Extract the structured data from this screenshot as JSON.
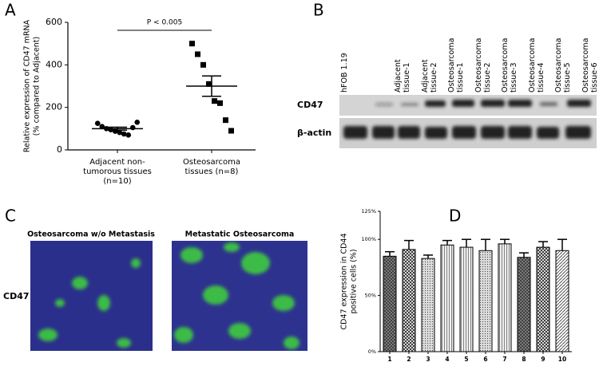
{
  "panel_letters": [
    "A",
    "B",
    "C",
    "D"
  ],
  "chart_data": [
    {
      "type": "dotplot",
      "y_label": [
        "Relative expression of CD47 mRNA",
        "(% compared to Adjacent)"
      ],
      "categories": [
        "Adjacent non-tumorous tissues (n=10)",
        "Osteosarcoma tissues (n=8)"
      ],
      "groups": [
        {
          "values": [
            125,
            110,
            100,
            95,
            88,
            82,
            75,
            70,
            105,
            130
          ],
          "mean": 100,
          "sem": 7,
          "marker": "circle"
        },
        {
          "values": [
            500,
            450,
            400,
            310,
            230,
            220,
            140,
            90
          ],
          "mean": 300,
          "sem": 48,
          "marker": "square"
        }
      ],
      "annotation": "P < 0.005",
      "ylim": [
        0,
        600
      ],
      "yticks": [
        0,
        200,
        400,
        600
      ],
      "color": "#000000"
    },
    {
      "type": "bar",
      "y_label": [
        "CD47 expression in CD44",
        "positive cells (%)"
      ],
      "categories": [
        "1",
        "2",
        "3",
        "4",
        "5",
        "6",
        "7",
        "8",
        "9",
        "10"
      ],
      "values": [
        85,
        91,
        83,
        95,
        93,
        90,
        96,
        84,
        93,
        90
      ],
      "errors": [
        4,
        8,
        3,
        4,
        7,
        10,
        4,
        4,
        5,
        10
      ],
      "ylim": [
        0,
        125
      ],
      "yticks": [
        {
          "value": 0,
          "label": "0%"
        },
        {
          "value": 50,
          "label": "50%"
        },
        {
          "value": 100,
          "label": "100%"
        },
        {
          "value": 125,
          "label": "125%"
        }
      ],
      "color": "#000000"
    }
  ],
  "blot": {
    "lanes": [
      "hFOB 1.19",
      "Adjacent tissue-1",
      "Adjacent tissue-2",
      "Osteosarcoma tissue-1",
      "Osteosarcoma tissue-2",
      "Osteosarcoma tissue-3",
      "Osteosarcoma tissue-4",
      "Osteosarcoma tissue-5",
      "Osteosarcoma tissue-6"
    ],
    "rows": [
      "CD47",
      "β-actin"
    ]
  },
  "images": {
    "titles": [
      "Osteosarcoma w/o Metastasis",
      "Metastatic Osteosarcoma"
    ],
    "row_label": "CD47"
  }
}
